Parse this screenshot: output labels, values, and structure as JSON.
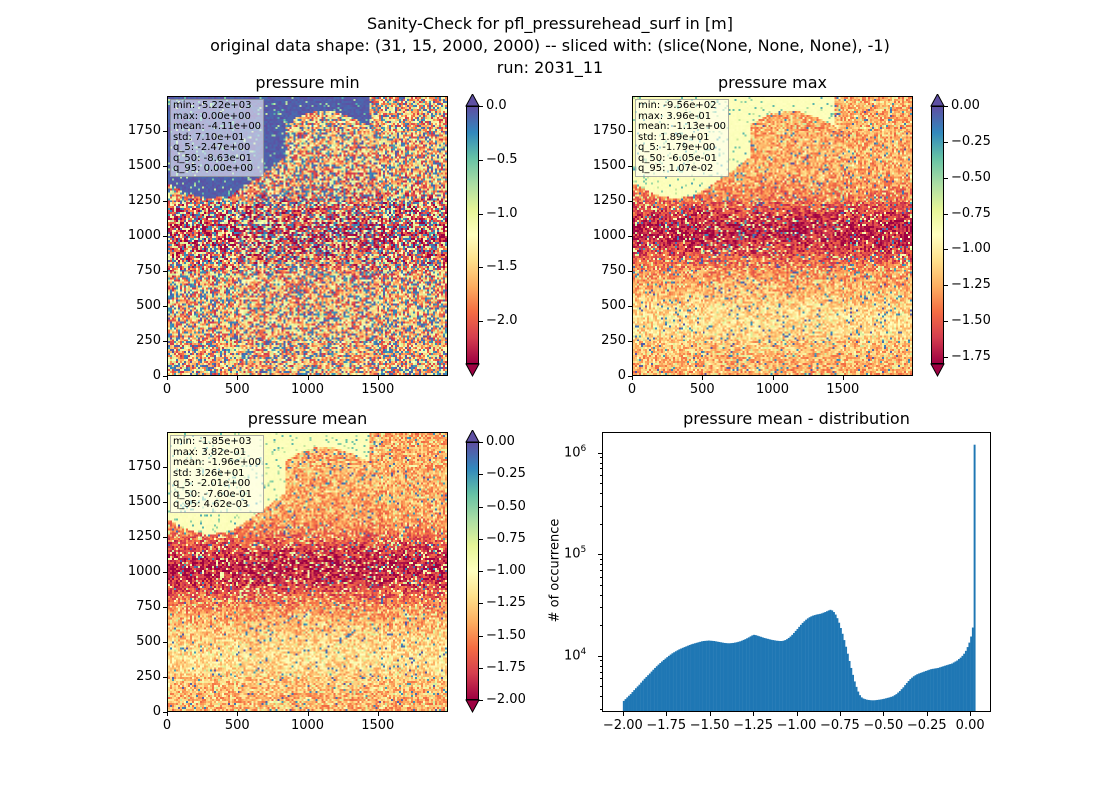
{
  "figure": {
    "title_lines": [
      "Sanity-Check for pfl_pressurehead_surf in [m]",
      "original data shape: (31, 15, 2000, 2000) -- sliced with: (slice(None, None, None), -1)",
      "run: 2031_11"
    ]
  },
  "chart_data": [
    {
      "type": "heatmap",
      "title": "pressure min",
      "x_ticks": [
        "0",
        "500",
        "1000",
        "1500"
      ],
      "y_ticks": [
        "0",
        "250",
        "500",
        "750",
        "1000",
        "1250",
        "1500",
        "1750"
      ],
      "xlim": [
        0,
        2000
      ],
      "ylim": [
        0,
        2000
      ],
      "colormap": "Spectral",
      "colorbar": {
        "min": -2.4,
        "max": 0.0,
        "extend": "both",
        "ticks": [
          {
            "v": 0.0,
            "label": "0.0"
          },
          {
            "v": -0.5,
            "label": "−0.5"
          },
          {
            "v": -1.0,
            "label": "−1.0"
          },
          {
            "v": -1.5,
            "label": "−1.5"
          },
          {
            "v": -2.0,
            "label": "−2.0"
          }
        ]
      },
      "stats": [
        "min: -5.22e+03",
        "max: 0.00e+00",
        "mean: -4.11e+00",
        "std: 7.10e+01",
        "q_5: -2.47e+00",
        "q_50: -8.63e-01",
        "q_95: 0.00e+00"
      ]
    },
    {
      "type": "heatmap",
      "title": "pressure max",
      "x_ticks": [
        "0",
        "500",
        "1000",
        "1500"
      ],
      "y_ticks": [
        "0",
        "250",
        "500",
        "750",
        "1000",
        "1250",
        "1500",
        "1750"
      ],
      "xlim": [
        0,
        2000
      ],
      "ylim": [
        0,
        2000
      ],
      "colormap": "Spectral",
      "colorbar": {
        "min": -1.8,
        "max": 0.0,
        "extend": "both",
        "ticks": [
          {
            "v": 0.0,
            "label": "0.00"
          },
          {
            "v": -0.25,
            "label": "−0.25"
          },
          {
            "v": -0.5,
            "label": "−0.50"
          },
          {
            "v": -0.75,
            "label": "−0.75"
          },
          {
            "v": -1.0,
            "label": "−1.00"
          },
          {
            "v": -1.25,
            "label": "−1.25"
          },
          {
            "v": -1.5,
            "label": "−1.50"
          },
          {
            "v": -1.75,
            "label": "−1.75"
          }
        ]
      },
      "stats": [
        "min: -9.56e+02",
        "max: 3.96e-01",
        "mean: -1.13e+00",
        "std: 1.89e+01",
        "q_5: -1.79e+00",
        "q_50: -6.05e-01",
        "q_95: 1.07e-02"
      ]
    },
    {
      "type": "heatmap",
      "title": "pressure mean",
      "x_ticks": [
        "0",
        "500",
        "1000",
        "1500"
      ],
      "y_ticks": [
        "0",
        "250",
        "500",
        "750",
        "1000",
        "1250",
        "1500",
        "1750"
      ],
      "xlim": [
        0,
        2000
      ],
      "ylim": [
        0,
        2000
      ],
      "colormap": "Spectral",
      "colorbar": {
        "min": -2.0,
        "max": 0.0,
        "extend": "both",
        "ticks": [
          {
            "v": 0.0,
            "label": "0.00"
          },
          {
            "v": -0.25,
            "label": "−0.25"
          },
          {
            "v": -0.5,
            "label": "−0.50"
          },
          {
            "v": -0.75,
            "label": "−0.75"
          },
          {
            "v": -1.0,
            "label": "−1.00"
          },
          {
            "v": -1.25,
            "label": "−1.25"
          },
          {
            "v": -1.5,
            "label": "−1.50"
          },
          {
            "v": -1.75,
            "label": "−1.75"
          },
          {
            "v": -2.0,
            "label": "−2.00"
          }
        ]
      },
      "stats": [
        "min: -1.85e+03",
        "max: 3.82e-01",
        "mean: -1.96e+00",
        "std: 3.26e+01",
        "q_5: -2.01e+00",
        "q_50: -7.60e-01",
        "q_95: 4.62e-03"
      ]
    },
    {
      "type": "bar",
      "title": "pressure mean - distribution",
      "xlabel": "",
      "ylabel": "# of occurrence",
      "yscale": "log",
      "xlim": [
        -2.12,
        0.12
      ],
      "ylim": [
        2800,
        1600000
      ],
      "x_ticks": [
        {
          "v": -2.0,
          "label": "−2.00"
        },
        {
          "v": -1.75,
          "label": "−1.75"
        },
        {
          "v": -1.5,
          "label": "−1.50"
        },
        {
          "v": -1.25,
          "label": "−1.25"
        },
        {
          "v": -1.0,
          "label": "−1.00"
        },
        {
          "v": -0.75,
          "label": "−0.75"
        },
        {
          "v": -0.5,
          "label": "−0.50"
        },
        {
          "v": -0.25,
          "label": "−0.25"
        },
        {
          "v": 0.0,
          "label": "0.00"
        }
      ],
      "y_ticks": [
        {
          "v": 10000,
          "base": "10",
          "exp": "4"
        },
        {
          "v": 100000,
          "base": "10",
          "exp": "5"
        },
        {
          "v": 1000000,
          "base": "10",
          "exp": "6"
        }
      ],
      "color": "#1f77b4",
      "bins": {
        "start": -2.0,
        "end": 0.0,
        "count": 200
      },
      "counts": [
        3600,
        3750,
        3900,
        4050,
        4200,
        4400,
        4600,
        4800,
        5000,
        5200,
        5450,
        5700,
        5950,
        6200,
        6450,
        6700,
        7000,
        7300,
        7600,
        7900,
        8200,
        8500,
        8800,
        9100,
        9400,
        9700,
        10000,
        10300,
        10600,
        10850,
        11100,
        11350,
        11600,
        11800,
        12000,
        12200,
        12400,
        12600,
        12800,
        13000,
        13150,
        13300,
        13450,
        13600,
        13750,
        13900,
        14000,
        14050,
        14100,
        14150,
        14100,
        14050,
        14000,
        13900,
        13800,
        13700,
        13600,
        13500,
        13400,
        13350,
        13300,
        13300,
        13350,
        13400,
        13500,
        13600,
        13750,
        13900,
        14100,
        14350,
        14600,
        14900,
        15200,
        15550,
        15900,
        16100,
        16000,
        15800,
        15600,
        15400,
        15200,
        15000,
        14850,
        14700,
        14550,
        14400,
        14300,
        14200,
        14100,
        14050,
        14000,
        14000,
        14100,
        14300,
        14600,
        15000,
        15500,
        16100,
        16800,
        17600,
        18400,
        19300,
        20200,
        21100,
        21900,
        22700,
        23400,
        24000,
        24500,
        24900,
        25200,
        25500,
        25700,
        25900,
        26200,
        26600,
        27000,
        27500,
        28000,
        28400,
        28000,
        27000,
        25500,
        23500,
        21200,
        18800,
        16500,
        14300,
        12300,
        10500,
        8900,
        7600,
        6500,
        5600,
        4950,
        4450,
        4100,
        3900,
        3800,
        3750,
        3700,
        3680,
        3660,
        3650,
        3650,
        3660,
        3680,
        3700,
        3720,
        3750,
        3780,
        3820,
        3860,
        3900,
        3950,
        4000,
        4100,
        4200,
        4350,
        4500,
        4700,
        4900,
        5150,
        5400,
        5650,
        5900,
        6100,
        6300,
        6450,
        6600,
        6700,
        6800,
        6900,
        7000,
        7100,
        7200,
        7300,
        7400,
        7450,
        7500,
        7550,
        7600,
        7700,
        7800,
        7900,
        8000,
        8100,
        8200,
        8300,
        8400,
        8600,
        8800,
        9000,
        9300,
        9600,
        10000,
        10500,
        11200,
        12200,
        13500,
        15500,
        19000,
        1200000
      ]
    }
  ]
}
